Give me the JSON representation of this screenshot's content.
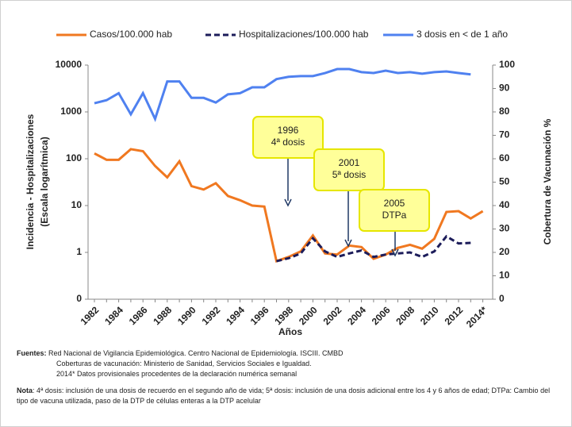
{
  "chart_data": {
    "type": "line",
    "categories": [
      "1982",
      null,
      "1984",
      null,
      "1986",
      null,
      "1988",
      null,
      "1990",
      null,
      "1992",
      null,
      "1994",
      null,
      "1996",
      null,
      "1998",
      null,
      "2000",
      null,
      "2002",
      null,
      "2004",
      null,
      "2006",
      null,
      "2008",
      null,
      "2010",
      null,
      "2012",
      null,
      "2014*"
    ],
    "series": [
      {
        "name": "Casos/100.000 hab",
        "color": "#f07820",
        "dashed": false,
        "values": [
          130,
          95,
          95,
          160,
          145,
          70,
          40,
          88,
          26,
          22,
          30,
          16,
          13,
          10,
          9.5,
          0.65,
          0.8,
          1.05,
          2.3,
          0.95,
          0.9,
          1.4,
          1.3,
          0.73,
          0.9,
          1.25,
          1.45,
          1.2,
          1.95,
          7.3,
          7.6,
          5.3,
          7.6
        ]
      },
      {
        "name": "Hospitalizaciones/100.000 hab",
        "color": "#1c1c5a",
        "dashed": true,
        "values": [
          null,
          null,
          null,
          null,
          null,
          null,
          null,
          null,
          null,
          null,
          null,
          null,
          null,
          null,
          null,
          0.65,
          0.75,
          0.95,
          2.0,
          1.05,
          0.8,
          0.95,
          1.1,
          0.8,
          0.9,
          0.95,
          1.0,
          0.8,
          1.05,
          2.2,
          1.55,
          1.6,
          null
        ]
      },
      {
        "name": "3 dosis en < de 1 año",
        "color": "#4f81f0",
        "dashed": false,
        "axis": "y2",
        "values": [
          83.7,
          85,
          88,
          79,
          88,
          77,
          93,
          93,
          86,
          86,
          84,
          87.5,
          88,
          90.5,
          90.5,
          94,
          95,
          95.3,
          95.3,
          96.6,
          98.3,
          98.3,
          97,
          96.6,
          97.6,
          96.6,
          97,
          96.3,
          97,
          97.3,
          96.6,
          96,
          null
        ]
      }
    ],
    "log_y": true,
    "ylim": [
      0.1,
      10000
    ],
    "yticks": [
      {
        "value": 0.1,
        "label": "0"
      },
      1,
      10,
      100,
      1000,
      10000
    ],
    "y2lim": [
      0,
      100
    ],
    "y2ticks": [
      0,
      10,
      20,
      30,
      40,
      50,
      60,
      70,
      80,
      90,
      100
    ],
    "ylabel": [
      "Incidencia - Hospitalizaciones",
      "(Escala logarítmica)"
    ],
    "y2label": "Cobertura de Vacunación %",
    "xlabel": "Años",
    "legend": "top",
    "annotations": [
      {
        "text": [
          "1996",
          "4ª dosis"
        ]
      },
      {
        "text": [
          "2001",
          "5ª dosis"
        ]
      },
      {
        "text": [
          "2005",
          "DTPa"
        ]
      }
    ]
  },
  "footer": {
    "sources_label": "Fuentes:",
    "sources": [
      "Red Nacional de Vigilancia Epidemiológica. Centro Nacional de Epidemiología. ISCIII. CMBD",
      "Coberturas de vacunación: Ministerio de Sanidad, Servicios Sociales e Igualdad.",
      "2014* Datos provisionales procedentes de la declaración numérica semanal"
    ],
    "note_label": "Nota",
    "note": ": 4ª dosis: inclusión de una dosis de recuerdo en el segundo año de vida; 5ª dosis: inclusión de una dosis adicional entre los 4 y 6 años de edad;  DTPa: Cambio del tipo de vacuna utilizada, paso de la DTP de células enteras a la DTP acelular"
  }
}
